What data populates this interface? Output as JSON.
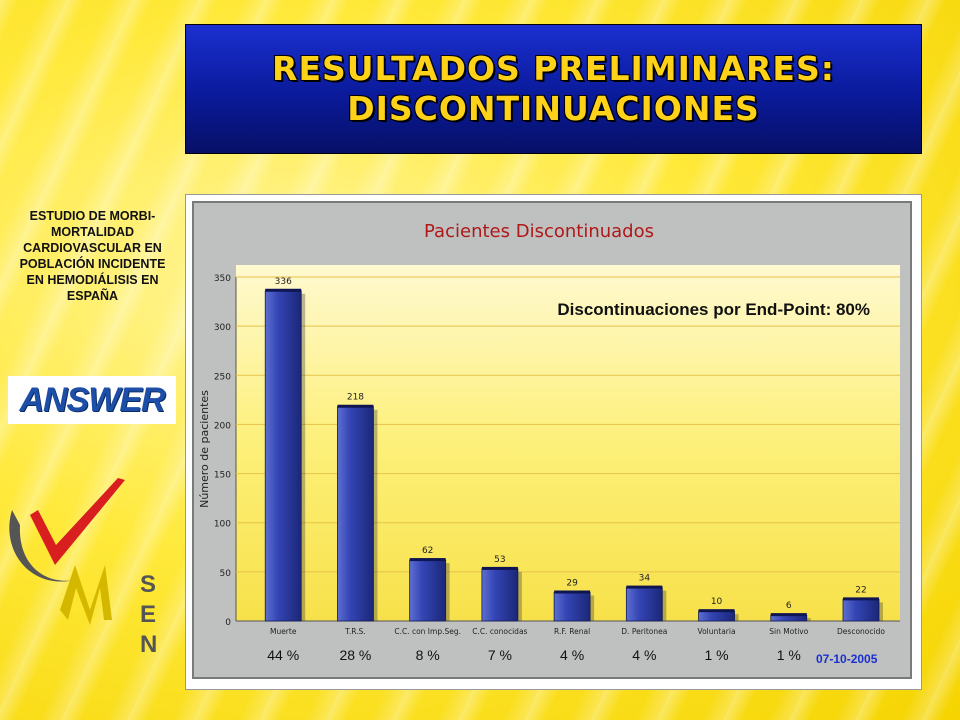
{
  "slide": {
    "title_line1": "RESULTADOS PRELIMINARES:",
    "title_line2": "DISCONTINUACIONES",
    "study_text": "ESTUDIO DE MORBI-MORTALIDAD CARDIOVASCULAR EN POBLACIÓN INCIDENTE EN HEMODIÁLISIS EN ESPAÑA",
    "answer_logo_text": "ANSWER",
    "sen_logo_text": "SEN",
    "overlay_text": "Discontinuaciones por End-Point: 80%",
    "date_label": "07-10-2005",
    "colors": {
      "title_bg": "#0a1a9a",
      "title_text": "#ffd21a",
      "bar": "#2e3fa8",
      "date": "#1a2fd0"
    }
  },
  "chart_data": {
    "type": "bar",
    "title": "Pacientes Discontinuados",
    "ylabel": "Número de pacientes",
    "xlabel": "",
    "ylim": [
      0,
      350
    ],
    "yticks": [
      0,
      50,
      100,
      150,
      200,
      250,
      300,
      350
    ],
    "grid": true,
    "categories": [
      "Muerte",
      "T.R.S.",
      "C.C. con Imp.Seg.",
      "C.C. conocidas",
      "R.F. Renal",
      "D. Peritonea",
      "Voluntaria",
      "Sin Motivo",
      "Desconocido"
    ],
    "values": [
      336,
      218,
      62,
      53,
      29,
      34,
      10,
      6,
      22
    ],
    "percent_labels": [
      "44 %",
      "28 %",
      "8 %",
      "7 %",
      "4 %",
      "4 %",
      "1 %",
      "1 %"
    ]
  }
}
